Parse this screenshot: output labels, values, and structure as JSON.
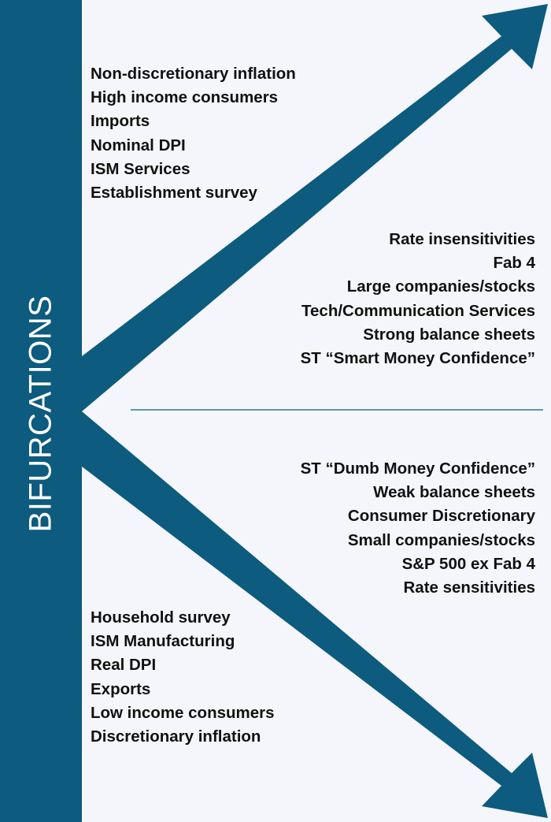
{
  "title": "BIFURCATIONS",
  "colors": {
    "accent": "#0d5b7e",
    "background": "#f4f6fb",
    "text": "#111111",
    "divider": "#0d5b7e"
  },
  "upper": {
    "left_items": [
      "Non-discretionary inflation",
      "High income consumers",
      "Imports",
      "Nominal DPI",
      "ISM Services",
      "Establishment survey"
    ],
    "right_items": [
      "Rate insensitivities",
      "Fab 4",
      "Large companies/stocks",
      "Tech/Communication Services",
      "Strong balance sheets",
      "ST “Smart Money Confidence”"
    ]
  },
  "lower": {
    "right_items": [
      "ST “Dumb Money Confidence”",
      "Weak balance sheets",
      "Consumer Discretionary",
      "Small companies/stocks",
      "S&P 500 ex Fab 4",
      "Rate sensitivities"
    ],
    "left_items": [
      "Household survey",
      "ISM Manufacturing",
      "Real DPI",
      "Exports",
      "Low income consumers",
      "Discretionary inflation"
    ]
  }
}
